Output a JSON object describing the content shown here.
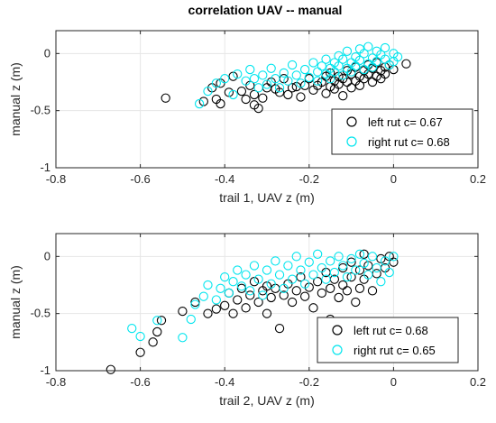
{
  "figure": {
    "title": "correlation UAV -- manual"
  },
  "colors": {
    "left": "#000000",
    "right": "#00e5ee",
    "grid": "#e6e6e6",
    "axis": "#262626"
  },
  "chart_data": [
    {
      "type": "scatter",
      "title": "correlation UAV -- manual",
      "xlabel": "trail 1, UAV z (m)",
      "ylabel": "manual z (m)",
      "xlim": [
        -0.8,
        0.2
      ],
      "ylim": [
        -1,
        0.2
      ],
      "xticks": [
        "-0.8",
        "-0.6",
        "-0.4",
        "-0.2",
        "0",
        "0.2"
      ],
      "yticks": [
        "0",
        "-0.5",
        "-1"
      ],
      "grid": true,
      "legend_position": "lower-right",
      "series": [
        {
          "name": "left rut c= 0.67",
          "legend_label": "left rut c= 0.67",
          "marker": "circle-open",
          "color": "#000000",
          "points": [
            [
              -0.54,
              -0.39
            ],
            [
              -0.45,
              -0.42
            ],
            [
              -0.43,
              -0.3
            ],
            [
              -0.42,
              -0.4
            ],
            [
              -0.41,
              -0.26
            ],
            [
              -0.41,
              -0.44
            ],
            [
              -0.39,
              -0.34
            ],
            [
              -0.38,
              -0.2
            ],
            [
              -0.36,
              -0.33
            ],
            [
              -0.35,
              -0.4
            ],
            [
              -0.34,
              -0.28
            ],
            [
              -0.33,
              -0.45
            ],
            [
              -0.33,
              -0.36
            ],
            [
              -0.32,
              -0.48
            ],
            [
              -0.31,
              -0.39
            ],
            [
              -0.3,
              -0.3
            ],
            [
              -0.29,
              -0.25
            ],
            [
              -0.28,
              -0.31
            ],
            [
              -0.27,
              -0.34
            ],
            [
              -0.26,
              -0.22
            ],
            [
              -0.25,
              -0.36
            ],
            [
              -0.24,
              -0.3
            ],
            [
              -0.23,
              -0.29
            ],
            [
              -0.22,
              -0.38
            ],
            [
              -0.21,
              -0.28
            ],
            [
              -0.2,
              -0.22
            ],
            [
              -0.19,
              -0.32
            ],
            [
              -0.18,
              -0.28
            ],
            [
              -0.17,
              -0.25
            ],
            [
              -0.16,
              -0.2
            ],
            [
              -0.16,
              -0.35
            ],
            [
              -0.15,
              -0.29
            ],
            [
              -0.15,
              -0.17
            ],
            [
              -0.14,
              -0.24
            ],
            [
              -0.14,
              -0.31
            ],
            [
              -0.13,
              -0.2
            ],
            [
              -0.13,
              -0.27
            ],
            [
              -0.12,
              -0.22
            ],
            [
              -0.12,
              -0.37
            ],
            [
              -0.11,
              -0.15
            ],
            [
              -0.11,
              -0.25
            ],
            [
              -0.1,
              -0.3
            ],
            [
              -0.1,
              -0.18
            ],
            [
              -0.09,
              -0.24
            ],
            [
              -0.09,
              -0.12
            ],
            [
              -0.08,
              -0.2
            ],
            [
              -0.08,
              -0.28
            ],
            [
              -0.07,
              -0.15
            ],
            [
              -0.07,
              -0.22
            ],
            [
              -0.06,
              -0.1
            ],
            [
              -0.06,
              -0.18
            ],
            [
              -0.05,
              -0.25
            ],
            [
              -0.05,
              -0.13
            ],
            [
              -0.04,
              -0.2
            ],
            [
              -0.04,
              -0.08
            ],
            [
              -0.03,
              -0.15
            ],
            [
              -0.03,
              -0.22
            ],
            [
              -0.02,
              -0.12
            ],
            [
              -0.02,
              -0.18
            ],
            [
              -0.01,
              -0.1
            ],
            [
              0.0,
              -0.14
            ],
            [
              0.03,
              -0.09
            ]
          ]
        },
        {
          "name": "right rut c= 0.68",
          "legend_label": "right rut c= 0.68",
          "marker": "circle-open",
          "color": "#00e5ee",
          "points": [
            [
              -0.46,
              -0.44
            ],
            [
              -0.44,
              -0.33
            ],
            [
              -0.42,
              -0.26
            ],
            [
              -0.4,
              -0.22
            ],
            [
              -0.38,
              -0.36
            ],
            [
              -0.37,
              -0.18
            ],
            [
              -0.35,
              -0.24
            ],
            [
              -0.34,
              -0.14
            ],
            [
              -0.33,
              -0.22
            ],
            [
              -0.32,
              -0.3
            ],
            [
              -0.31,
              -0.19
            ],
            [
              -0.3,
              -0.27
            ],
            [
              -0.29,
              -0.13
            ],
            [
              -0.28,
              -0.22
            ],
            [
              -0.27,
              -0.3
            ],
            [
              -0.26,
              -0.17
            ],
            [
              -0.25,
              -0.24
            ],
            [
              -0.24,
              -0.1
            ],
            [
              -0.23,
              -0.19
            ],
            [
              -0.22,
              -0.26
            ],
            [
              -0.21,
              -0.14
            ],
            [
              -0.2,
              -0.21
            ],
            [
              -0.19,
              -0.08
            ],
            [
              -0.18,
              -0.16
            ],
            [
              -0.18,
              -0.24
            ],
            [
              -0.17,
              -0.11
            ],
            [
              -0.16,
              -0.18
            ],
            [
              -0.16,
              -0.05
            ],
            [
              -0.15,
              -0.13
            ],
            [
              -0.15,
              -0.22
            ],
            [
              -0.14,
              -0.08
            ],
            [
              -0.14,
              -0.16
            ],
            [
              -0.13,
              -0.02
            ],
            [
              -0.13,
              -0.11
            ],
            [
              -0.12,
              -0.19
            ],
            [
              -0.12,
              -0.05
            ],
            [
              -0.11,
              -0.13
            ],
            [
              -0.11,
              0.02
            ],
            [
              -0.1,
              -0.08
            ],
            [
              -0.1,
              -0.16
            ],
            [
              -0.09,
              -0.03
            ],
            [
              -0.09,
              -0.11
            ],
            [
              -0.08,
              0.04
            ],
            [
              -0.08,
              -0.06
            ],
            [
              -0.07,
              -0.14
            ],
            [
              -0.07,
              0.0
            ],
            [
              -0.06,
              -0.09
            ],
            [
              -0.06,
              0.06
            ],
            [
              -0.05,
              -0.04
            ],
            [
              -0.05,
              -0.12
            ],
            [
              -0.04,
              0.02
            ],
            [
              -0.04,
              -0.07
            ],
            [
              -0.03,
              -0.01
            ],
            [
              -0.02,
              0.05
            ],
            [
              -0.02,
              -0.05
            ],
            [
              -0.01,
              -0.1
            ],
            [
              0.0,
              0.0
            ],
            [
              0.0,
              -0.07
            ],
            [
              0.01,
              -0.03
            ]
          ]
        }
      ]
    },
    {
      "type": "scatter",
      "title": "",
      "xlabel": "trail 2, UAV z (m)",
      "ylabel": "manual z (m)",
      "xlim": [
        -0.8,
        0.2
      ],
      "ylim": [
        -1,
        0.2
      ],
      "xticks": [
        "-0.8",
        "-0.6",
        "-0.4",
        "-0.2",
        "0",
        "0.2"
      ],
      "yticks": [
        "0",
        "-0.5",
        "-1"
      ],
      "grid": true,
      "legend_position": "lower-right",
      "series": [
        {
          "name": "left rut c= 0.68",
          "legend_label": "left rut c= 0.68",
          "marker": "circle-open",
          "color": "#000000",
          "points": [
            [
              -0.67,
              -0.99
            ],
            [
              -0.6,
              -0.84
            ],
            [
              -0.57,
              -0.75
            ],
            [
              -0.56,
              -0.66
            ],
            [
              -0.55,
              -0.56
            ],
            [
              -0.5,
              -0.48
            ],
            [
              -0.47,
              -0.4
            ],
            [
              -0.44,
              -0.5
            ],
            [
              -0.42,
              -0.46
            ],
            [
              -0.4,
              -0.43
            ],
            [
              -0.39,
              -0.32
            ],
            [
              -0.38,
              -0.5
            ],
            [
              -0.37,
              -0.38
            ],
            [
              -0.36,
              -0.28
            ],
            [
              -0.35,
              -0.45
            ],
            [
              -0.34,
              -0.34
            ],
            [
              -0.33,
              -0.22
            ],
            [
              -0.32,
              -0.4
            ],
            [
              -0.31,
              -0.3
            ],
            [
              -0.3,
              -0.26
            ],
            [
              -0.3,
              -0.5
            ],
            [
              -0.29,
              -0.36
            ],
            [
              -0.28,
              -0.28
            ],
            [
              -0.27,
              -0.63
            ],
            [
              -0.26,
              -0.34
            ],
            [
              -0.25,
              -0.24
            ],
            [
              -0.24,
              -0.4
            ],
            [
              -0.23,
              -0.3
            ],
            [
              -0.22,
              -0.18
            ],
            [
              -0.21,
              -0.35
            ],
            [
              -0.2,
              -0.27
            ],
            [
              -0.19,
              -0.45
            ],
            [
              -0.18,
              -0.22
            ],
            [
              -0.17,
              -0.32
            ],
            [
              -0.16,
              -0.14
            ],
            [
              -0.15,
              -0.28
            ],
            [
              -0.15,
              -0.55
            ],
            [
              -0.14,
              -0.2
            ],
            [
              -0.13,
              -0.36
            ],
            [
              -0.12,
              -0.1
            ],
            [
              -0.12,
              -0.25
            ],
            [
              -0.11,
              -0.3
            ],
            [
              -0.1,
              -0.05
            ],
            [
              -0.1,
              -0.18
            ],
            [
              -0.09,
              -0.4
            ],
            [
              -0.08,
              -0.12
            ],
            [
              -0.08,
              -0.28
            ],
            [
              -0.07,
              0.02
            ],
            [
              -0.07,
              -0.2
            ],
            [
              -0.06,
              -0.08
            ],
            [
              -0.05,
              -0.3
            ],
            [
              -0.04,
              -0.15
            ],
            [
              -0.03,
              -0.02
            ],
            [
              -0.02,
              -0.1
            ],
            [
              -0.01,
              0.0
            ],
            [
              0.0,
              -0.05
            ]
          ]
        },
        {
          "name": "right rut c= 0.65",
          "legend_label": "right rut c= 0.65",
          "marker": "circle-open",
          "color": "#00e5ee",
          "points": [
            [
              -0.62,
              -0.63
            ],
            [
              -0.6,
              -0.7
            ],
            [
              -0.56,
              -0.56
            ],
            [
              -0.5,
              -0.71
            ],
            [
              -0.48,
              -0.55
            ],
            [
              -0.47,
              -0.42
            ],
            [
              -0.45,
              -0.35
            ],
            [
              -0.44,
              -0.25
            ],
            [
              -0.42,
              -0.38
            ],
            [
              -0.41,
              -0.28
            ],
            [
              -0.4,
              -0.18
            ],
            [
              -0.39,
              -0.32
            ],
            [
              -0.38,
              -0.22
            ],
            [
              -0.37,
              -0.12
            ],
            [
              -0.36,
              -0.26
            ],
            [
              -0.35,
              -0.16
            ],
            [
              -0.34,
              -0.3
            ],
            [
              -0.33,
              -0.08
            ],
            [
              -0.32,
              -0.2
            ],
            [
              -0.31,
              -0.34
            ],
            [
              -0.3,
              -0.12
            ],
            [
              -0.29,
              -0.24
            ],
            [
              -0.28,
              -0.04
            ],
            [
              -0.27,
              -0.16
            ],
            [
              -0.26,
              -0.28
            ],
            [
              -0.25,
              -0.08
            ],
            [
              -0.24,
              -0.2
            ],
            [
              -0.23,
              0.0
            ],
            [
              -0.22,
              -0.12
            ],
            [
              -0.21,
              -0.24
            ],
            [
              -0.2,
              -0.05
            ],
            [
              -0.19,
              -0.16
            ],
            [
              -0.18,
              0.02
            ],
            [
              -0.17,
              -0.1
            ],
            [
              -0.16,
              -0.2
            ],
            [
              -0.15,
              -0.04
            ],
            [
              -0.14,
              -0.14
            ],
            [
              -0.13,
              0.0
            ],
            [
              -0.12,
              -0.08
            ],
            [
              -0.11,
              -0.18
            ],
            [
              -0.1,
              -0.02
            ],
            [
              -0.09,
              -0.12
            ],
            [
              -0.08,
              0.02
            ],
            [
              -0.07,
              -0.06
            ],
            [
              -0.06,
              -0.16
            ],
            [
              -0.05,
              0.0
            ],
            [
              -0.04,
              -0.1
            ],
            [
              -0.03,
              -0.22
            ],
            [
              -0.02,
              -0.04
            ],
            [
              -0.01,
              -0.14
            ],
            [
              0.0,
              0.0
            ]
          ]
        }
      ]
    }
  ]
}
